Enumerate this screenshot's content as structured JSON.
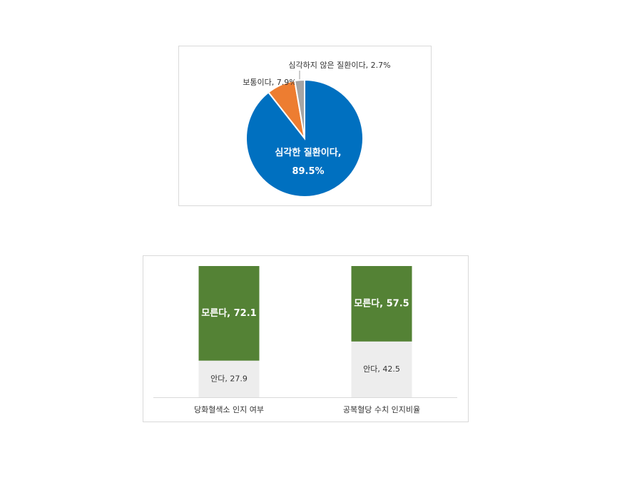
{
  "chart_data": [
    {
      "type": "pie",
      "values": [
        89.5,
        7.9,
        2.7
      ],
      "value_labels": [
        "심각한 질환이다, 89.5%",
        "보통이다, 7.9%",
        "심각하지 않은 질환이다, 2.7%"
      ],
      "colors": [
        "#0070c0",
        "#ed7d31",
        "#a5a5a5"
      ]
    },
    {
      "type": "stacked_bar",
      "categories": [
        "당화혈색소 인지 여부",
        "공복혈당 수치 인지비율"
      ],
      "series": [
        {
          "name": "안다",
          "color": "#ededed",
          "values": [
            27.9,
            42.5
          ],
          "value_labels": [
            "안다, 27.9",
            "안다, 42.5"
          ]
        },
        {
          "name": "모른다",
          "color": "#548235",
          "values": [
            72.1,
            57.5
          ],
          "value_labels": [
            "모른다, 72.1",
            "모른다, 57.5"
          ]
        }
      ],
      "ylim": [
        0,
        100
      ]
    }
  ]
}
